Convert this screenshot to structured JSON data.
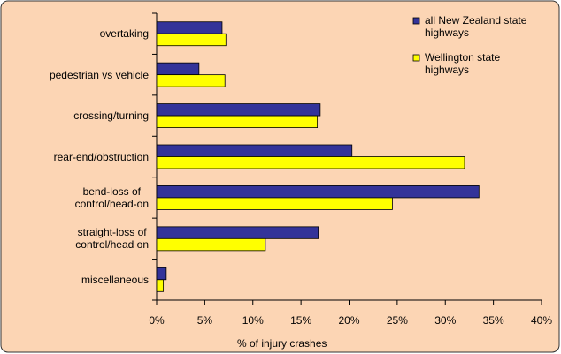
{
  "chart_data": {
    "type": "hbar",
    "categories": [
      "overtaking",
      "pedestrian vs vehicle",
      "crossing/turning",
      "rear-end/obstruction",
      "bend-loss of\ncontrol/head-on",
      "straight-loss of\ncontrol/head on",
      "miscellaneous"
    ],
    "series": [
      {
        "name": "all New Zealand state\nhighways",
        "color": "#333399",
        "values": [
          6.8,
          4.4,
          17.0,
          20.3,
          33.5,
          16.8,
          1.0
        ]
      },
      {
        "name": "Wellington state\nhighways",
        "color": "#ffff00",
        "values": [
          7.2,
          7.1,
          16.7,
          32.0,
          24.5,
          11.3,
          0.7
        ]
      }
    ],
    "xlabel": "% of injury crashes",
    "xlim": [
      0,
      40
    ],
    "xticks": [
      {
        "value": 0,
        "label": "0%"
      },
      {
        "value": 5,
        "label": "5%"
      },
      {
        "value": 10,
        "label": "10%"
      },
      {
        "value": 15,
        "label": "15%"
      },
      {
        "value": 20,
        "label": "20%"
      },
      {
        "value": 25,
        "label": "25%"
      },
      {
        "value": 30,
        "label": "30%"
      },
      {
        "value": 35,
        "label": "35%"
      },
      {
        "value": 40,
        "label": "40%"
      }
    ],
    "legend": "top right"
  }
}
